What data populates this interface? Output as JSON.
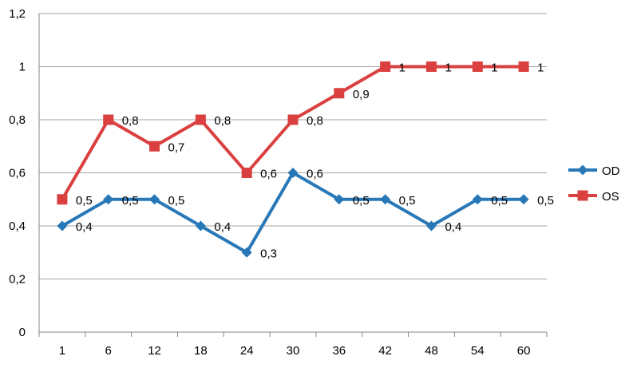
{
  "chart_data": {
    "type": "line",
    "categories": [
      "1",
      "6",
      "12",
      "18",
      "24",
      "30",
      "36",
      "42",
      "48",
      "54",
      "60"
    ],
    "series": [
      {
        "name": "OD",
        "values": [
          0.4,
          0.5,
          0.5,
          0.4,
          0.3,
          0.6,
          0.5,
          0.5,
          0.4,
          0.5,
          0.5
        ],
        "labels": [
          "0,4",
          "0,5",
          "0,5",
          "0,4",
          "0,3",
          "0,6",
          "0,5",
          "0,5",
          "0,4",
          "0,5",
          "0,5"
        ],
        "color": "#2878b8",
        "marker": "diamond"
      },
      {
        "name": "OS",
        "values": [
          0.5,
          0.8,
          0.7,
          0.8,
          0.6,
          0.8,
          0.9,
          1,
          1,
          1,
          1
        ],
        "labels": [
          "0,5",
          "0,8",
          "0,7",
          "0,8",
          "0,6",
          "0,8",
          "0,9",
          "1",
          "1",
          "1",
          "1"
        ],
        "color": "#d9403f",
        "marker": "square"
      }
    ],
    "y_ticks": [
      "0",
      "0,2",
      "0,4",
      "0,6",
      "0,8",
      "1",
      "1,2"
    ],
    "ylim": [
      0,
      1.2
    ],
    "grid": true,
    "legend": "right",
    "gridline_color": "#a6a6a6",
    "axis_color": "#868686"
  }
}
